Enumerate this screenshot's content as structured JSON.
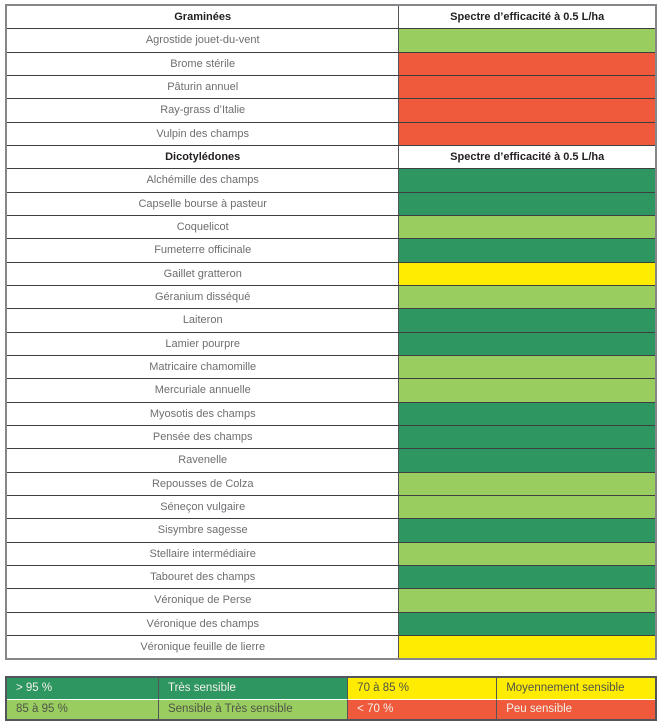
{
  "palette": {
    "dark_green": "#2d9661",
    "light_green": "#9acd5f",
    "yellow": "#ffec00",
    "red": "#ee5a3b"
  },
  "table": {
    "sections": [
      {
        "header": {
          "category": "Graminées",
          "spectrum": "Spectre d’efficacité à 0.5 L/ha"
        },
        "rows": [
          {
            "name": "Agrostide jouet-du-vent",
            "level": "light_green"
          },
          {
            "name": "Brome stérile",
            "level": "red"
          },
          {
            "name": "Pâturin annuel",
            "level": "red"
          },
          {
            "name": "Ray-grass d’Italie",
            "level": "red"
          },
          {
            "name": "Vulpin des champs",
            "level": "red"
          }
        ]
      },
      {
        "header": {
          "category": "Dicotylédones",
          "spectrum": "Spectre d’efficacité à 0.5 L/ha"
        },
        "rows": [
          {
            "name": "Alchémille des champs",
            "level": "dark_green"
          },
          {
            "name": "Capselle bourse à pasteur",
            "level": "dark_green"
          },
          {
            "name": "Coquelicot",
            "level": "light_green"
          },
          {
            "name": "Fumeterre officinale",
            "level": "dark_green"
          },
          {
            "name": "Gaillet gratteron",
            "level": "yellow"
          },
          {
            "name": "Géranium disséqué",
            "level": "light_green"
          },
          {
            "name": "Laiteron",
            "level": "dark_green"
          },
          {
            "name": "Lamier pourpre",
            "level": "dark_green"
          },
          {
            "name": "Matricaire chamomille",
            "level": "light_green"
          },
          {
            "name": "Mercuriale annuelle",
            "level": "light_green"
          },
          {
            "name": "Myosotis des champs",
            "level": "dark_green"
          },
          {
            "name": "Pensée des champs",
            "level": "dark_green"
          },
          {
            "name": "Ravenelle",
            "level": "dark_green"
          },
          {
            "name": "Repousses de Colza",
            "level": "light_green"
          },
          {
            "name": "Séneçon vulgaire",
            "level": "light_green"
          },
          {
            "name": "Sisymbre sagesse",
            "level": "dark_green"
          },
          {
            "name": "Stellaire intermédiaire",
            "level": "light_green"
          },
          {
            "name": "Tabouret des champs",
            "level": "dark_green"
          },
          {
            "name": "Véronique de Perse",
            "level": "light_green"
          },
          {
            "name": "Véronique des champs",
            "level": "dark_green"
          },
          {
            "name": "Véronique feuille de lierre",
            "level": "yellow"
          }
        ]
      }
    ]
  },
  "legend": {
    "rows": [
      [
        {
          "text": "> 95 %",
          "color": "dark_green",
          "text_color": "light"
        },
        {
          "text": "Très sensible",
          "color": "dark_green",
          "text_color": "light"
        },
        {
          "text": "70 à 85 %",
          "color": "yellow",
          "text_color": "dark"
        },
        {
          "text": "Moyennement sensible",
          "color": "yellow",
          "text_color": "dark"
        }
      ],
      [
        {
          "text": "85 à 95 %",
          "color": "light_green",
          "text_color": "dark"
        },
        {
          "text": "Sensible à Très sensible",
          "color": "light_green",
          "text_color": "dark"
        },
        {
          "text": "< 70 %",
          "color": "red",
          "text_color": "light"
        },
        {
          "text": "Peu sensible",
          "color": "red",
          "text_color": "light"
        }
      ]
    ]
  }
}
